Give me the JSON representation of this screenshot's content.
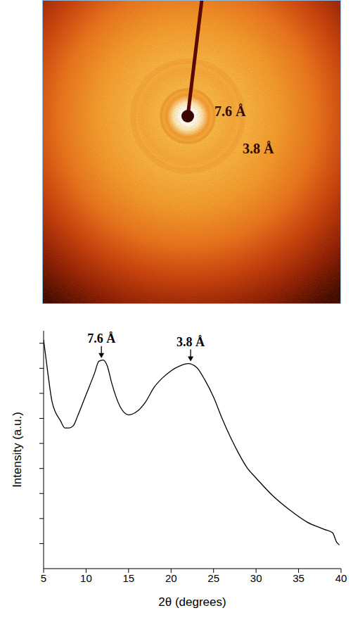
{
  "diffraction_image": {
    "ring_labels": [
      "7.6 Å",
      "3.8 Å"
    ]
  },
  "chart_data": {
    "type": "line",
    "x_label": "2θ (degrees)",
    "y_label": "Intensity (a.u.)",
    "color": "#000000",
    "x": [
      5,
      5.5,
      6,
      7,
      7.5,
      8,
      8.5,
      9,
      10,
      11,
      11.5,
      12,
      12.5,
      13,
      14,
      15,
      16,
      17,
      18,
      19,
      20,
      21,
      22,
      23,
      24,
      25,
      26,
      27,
      28,
      29,
      30,
      32,
      34,
      36,
      38,
      39,
      39.5,
      39.8
    ],
    "values": [
      9.14,
      7.81,
      6.66,
      5.9,
      5.62,
      5.62,
      5.71,
      6.09,
      6.95,
      7.81,
      8.28,
      8.33,
      8.09,
      7.43,
      6.47,
      6.14,
      6.28,
      6.66,
      7.24,
      7.62,
      7.9,
      8.09,
      8.19,
      8.04,
      7.52,
      6.85,
      6.0,
      5.24,
      4.57,
      4.0,
      3.62,
      2.9,
      2.33,
      1.86,
      1.57,
      1.43,
      1.05,
      0.95
    ],
    "xlim": [
      5,
      40
    ],
    "xticks": [
      5,
      10,
      15,
      20,
      25,
      30,
      35,
      40
    ],
    "ylim": [
      0,
      9.5
    ],
    "yticks": [
      1,
      2,
      3,
      4,
      5,
      6,
      7,
      8,
      9
    ],
    "tick_labels": "x",
    "annotations": [
      {
        "text": "7.6 Å",
        "x": 11.8,
        "y": 8.33
      },
      {
        "text": "3.8 Å",
        "x": 22.3,
        "y": 8.19
      }
    ]
  }
}
